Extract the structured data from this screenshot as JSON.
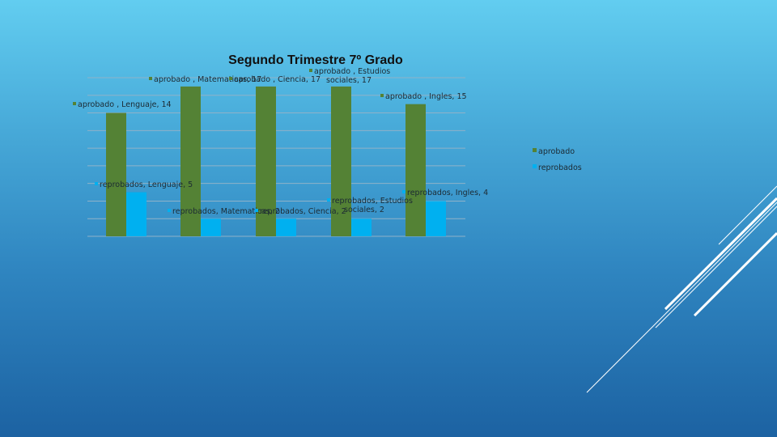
{
  "chart_data": {
    "type": "bar",
    "title": "Segundo Trimestre 7º Grado",
    "categories": [
      "Lenguaje",
      "Matematicas",
      "Ciencia",
      "Estudios sociales",
      "Ingles"
    ],
    "series": [
      {
        "name": "aprobado",
        "color": "#548235",
        "values": [
          14,
          17,
          17,
          17,
          15
        ],
        "labels": [
          [
            "aprobado , Lenguaje, 14"
          ],
          [
            "aprobado , Matematicas, 17"
          ],
          [
            "aprobado , Ciencia, 17"
          ],
          [
            "aprobado , Estudios",
            "sociales, 17"
          ],
          [
            "aprobado , Ingles, 15"
          ]
        ]
      },
      {
        "name": "reprobados",
        "color": "#00b0f0",
        "values": [
          5,
          2,
          2,
          2,
          4
        ],
        "labels": [
          [
            "reprobados, Lenguaje, 5"
          ],
          [
            "reprobados, Matematicas, 2"
          ],
          [
            "reprobados, Ciencia, 2"
          ],
          [
            "reprobados, Estudios",
            "sociales, 2"
          ],
          [
            "reprobados, Ingles, 4"
          ]
        ]
      }
    ],
    "ylim": [
      0,
      18
    ],
    "grid": true,
    "legend": "right"
  }
}
